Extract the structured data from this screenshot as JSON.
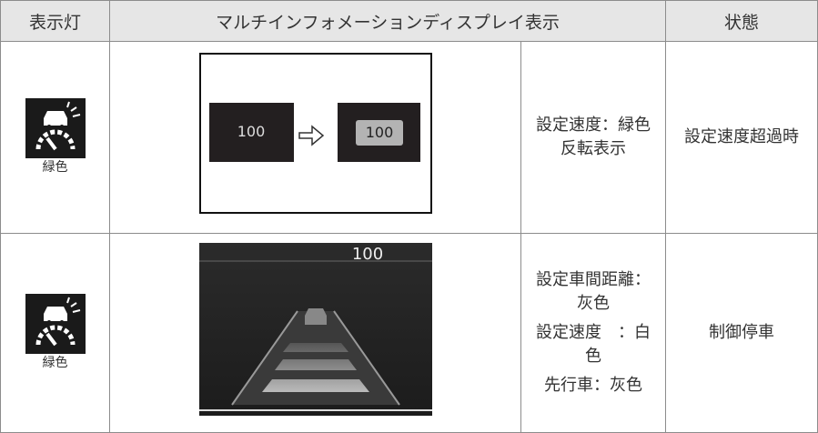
{
  "header": [
    "表示灯",
    "マルチインフォメーションディスプレイ表示",
    "状態"
  ],
  "rows": [
    {
      "indicator": "緑色",
      "display": [
        "100",
        "100"
      ],
      "description": [
        "設定速度：緑色反転表示"
      ],
      "state": "設定速度超過時"
    },
    {
      "indicator": "緑色",
      "display": [
        "100"
      ],
      "description": [
        "設定車間距離：灰色",
        "設定速度　：白色",
        "先行車：灰色"
      ],
      "state": "制御停車"
    }
  ]
}
